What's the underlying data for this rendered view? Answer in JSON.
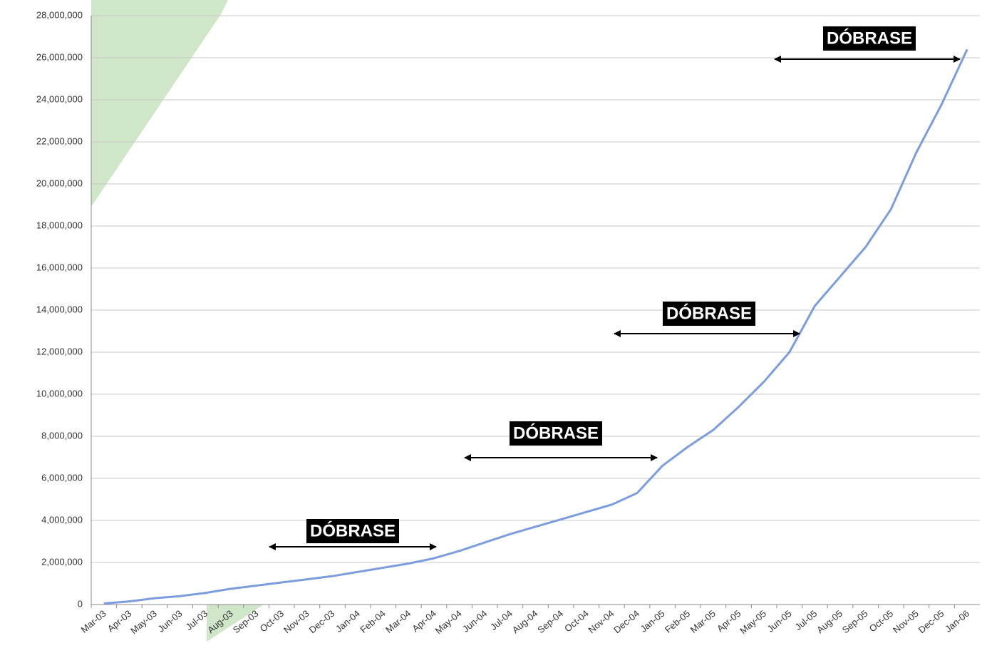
{
  "chart_data": {
    "type": "line",
    "categories": [
      "Mar-03",
      "Apr-03",
      "May-03",
      "Jun-03",
      "Jul-03",
      "Aug-03",
      "Sep-03",
      "Oct-03",
      "Nov-03",
      "Dec-03",
      "Jan-04",
      "Feb-04",
      "Mar-04",
      "Apr-04",
      "May-04",
      "Jun-04",
      "Jul-04",
      "Aug-04",
      "Sep-04",
      "Oct-04",
      "Nov-04",
      "Dec-04",
      "Jan-05",
      "Feb-05",
      "Mar-05",
      "Apr-05",
      "May-05",
      "Jun-05",
      "Jul-05",
      "Aug-05",
      "Sep-05",
      "Oct-05",
      "Nov-05",
      "Dec-05",
      "Jan-06"
    ],
    "values": [
      50000,
      150000,
      300000,
      400000,
      550000,
      750000,
      900000,
      1050000,
      1200000,
      1350000,
      1550000,
      1750000,
      1950000,
      2200000,
      2550000,
      2950000,
      3350000,
      3700000,
      4050000,
      4400000,
      4750000,
      5300000,
      6600000,
      7500000,
      8300000,
      9400000,
      10600000,
      12000000,
      14200000,
      15600000,
      17000000,
      18800000,
      21500000,
      23800000,
      26400000
    ],
    "color": "#7b9de0",
    "ylim": [
      0,
      28000000
    ],
    "yticks": [
      0,
      {
        "value": 2000000,
        "label": "2,000,000"
      },
      {
        "value": 4000000,
        "label": "4,000,000"
      },
      {
        "value": 6000000,
        "label": "6,000,000"
      },
      {
        "value": 8000000,
        "label": "8,000,000"
      },
      {
        "value": 10000000,
        "label": "10,000,000"
      },
      {
        "value": 12000000,
        "label": "12,000,000"
      },
      {
        "value": 14000000,
        "label": "14,000,000"
      },
      {
        "value": 16000000,
        "label": "16,000,000"
      },
      {
        "value": 18000000,
        "label": "18,000,000"
      },
      {
        "value": 20000000,
        "label": "20,000,000"
      },
      {
        "value": 22000000,
        "label": "22,000,000"
      },
      {
        "value": 24000000,
        "label": "24,000,000"
      },
      {
        "value": 26000000,
        "label": "26,000,000"
      },
      {
        "value": 28000000,
        "label": "28,000,000"
      }
    ],
    "grid": true,
    "annotations": [
      "DÓBRASE",
      "DÓBRASE",
      "DÓBRASE",
      "DÓBRASE"
    ]
  }
}
